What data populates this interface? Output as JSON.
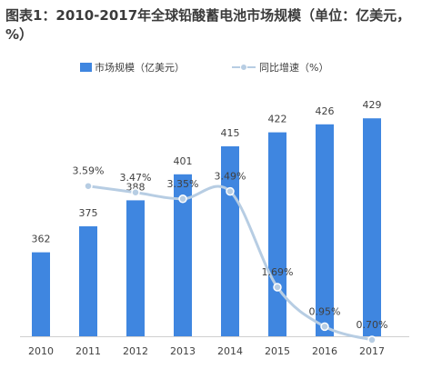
{
  "chart_data": {
    "type": "bar",
    "title": "图表1：2010-2017年全球铅酸蓄电池市场规模（单位：亿美元，%）",
    "categories": [
      "2010",
      "2011",
      "2012",
      "2013",
      "2014",
      "2015",
      "2016",
      "2017"
    ],
    "series": [
      {
        "name": "市场规模（亿美元）",
        "type": "bar",
        "values": [
          362,
          375,
          388,
          401,
          415,
          422,
          426,
          429
        ],
        "value_labels": [
          "362",
          "375",
          "388",
          "401",
          "415",
          "422",
          "426",
          "429"
        ],
        "color": "#3f86e0"
      },
      {
        "name": "同比增速（%）",
        "type": "line",
        "smooth": true,
        "values": [
          null,
          3.59,
          3.47,
          3.35,
          3.49,
          1.69,
          0.95,
          0.7
        ],
        "value_labels": [
          null,
          "3.59%",
          "3.47%",
          "3.35%",
          "3.49%",
          "1.69%",
          "0.95%",
          "0.70%"
        ],
        "color": "#b7cde3"
      }
    ],
    "xlabel": "",
    "ylabel": "",
    "bar_axis_range": [
      320,
      430
    ],
    "line_axis_range": [
      0,
      4.2
    ],
    "grid": false,
    "legend_position": "top-center"
  }
}
